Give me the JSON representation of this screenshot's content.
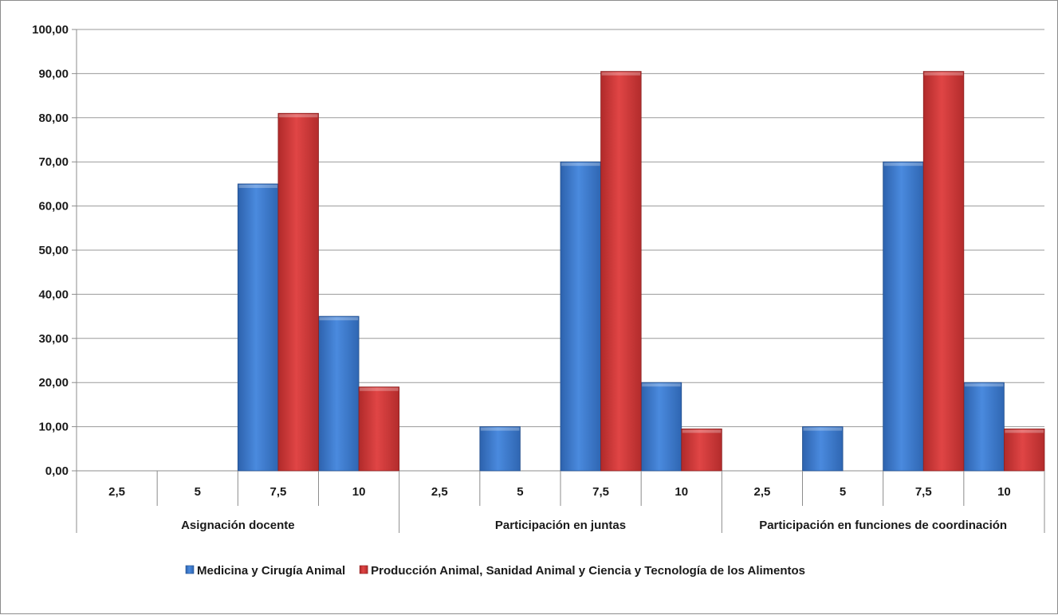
{
  "chart_data": {
    "type": "bar",
    "ylim": [
      0,
      100
    ],
    "ytick_step": 10,
    "ytick_labels": [
      "0,00",
      "10,00",
      "20,00",
      "30,00",
      "40,00",
      "50,00",
      "60,00",
      "70,00",
      "80,00",
      "90,00",
      "100,00"
    ],
    "grid": true,
    "legend_position": "bottom",
    "groups": [
      {
        "label": "Asignación docente",
        "categories": [
          "2,5",
          "5",
          "7,5",
          "10"
        ]
      },
      {
        "label": "Participación en juntas",
        "categories": [
          "2,5",
          "5",
          "7,5",
          "10"
        ]
      },
      {
        "label": "Participación en funciones de coordinación",
        "categories": [
          "2,5",
          "5",
          "7,5",
          "10"
        ]
      }
    ],
    "series": [
      {
        "name": "Medicina y Cirugía Animal",
        "color": "#3f7dd1",
        "values": [
          0,
          0,
          65,
          35,
          0,
          10,
          70,
          20,
          0,
          10,
          70,
          20
        ]
      },
      {
        "name": "Producción Animal, Sanidad Animal y Ciencia y Tecnología de los Alimentos",
        "color": "#d63b3b",
        "values": [
          0,
          0,
          81,
          19,
          0,
          0,
          90.5,
          9.5,
          0,
          0,
          90.5,
          9.5
        ]
      }
    ]
  }
}
